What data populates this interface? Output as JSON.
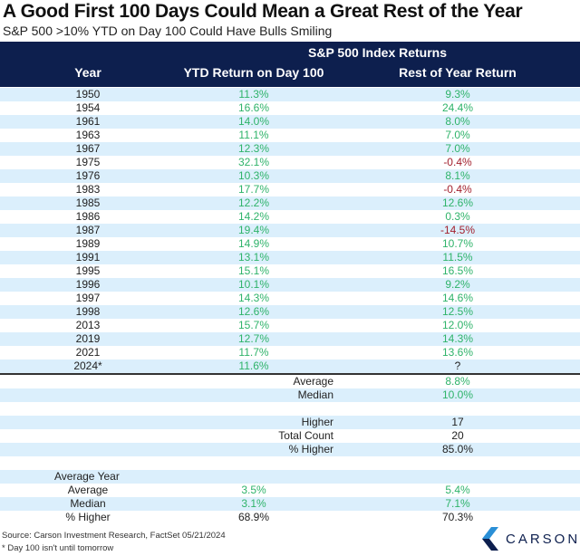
{
  "title": "A Good First 100 Days Could Mean a Great Rest of the Year",
  "subtitle": "S&P 500 >10% YTD on Day 100 Could Have Bulls Smiling",
  "header": {
    "group": "S&P 500 Index Returns",
    "columns": [
      "Year",
      "YTD Return on Day 100",
      "Rest of Year Return"
    ]
  },
  "colors": {
    "header_bg": "#0d1f4e",
    "positive": "#2fb36a",
    "negative": "#a3212e",
    "stripe": "#dbeffc"
  },
  "rows": [
    {
      "year": "1950",
      "ytd": "11.3%",
      "rest": "9.3%"
    },
    {
      "year": "1954",
      "ytd": "16.6%",
      "rest": "24.4%"
    },
    {
      "year": "1961",
      "ytd": "14.0%",
      "rest": "8.0%"
    },
    {
      "year": "1963",
      "ytd": "11.1%",
      "rest": "7.0%"
    },
    {
      "year": "1967",
      "ytd": "12.3%",
      "rest": "7.0%"
    },
    {
      "year": "1975",
      "ytd": "32.1%",
      "rest": "-0.4%"
    },
    {
      "year": "1976",
      "ytd": "10.3%",
      "rest": "8.1%"
    },
    {
      "year": "1983",
      "ytd": "17.7%",
      "rest": "-0.4%"
    },
    {
      "year": "1985",
      "ytd": "12.2%",
      "rest": "12.6%"
    },
    {
      "year": "1986",
      "ytd": "14.2%",
      "rest": "0.3%"
    },
    {
      "year": "1987",
      "ytd": "19.4%",
      "rest": "-14.5%"
    },
    {
      "year": "1989",
      "ytd": "14.9%",
      "rest": "10.7%"
    },
    {
      "year": "1991",
      "ytd": "13.1%",
      "rest": "11.5%"
    },
    {
      "year": "1995",
      "ytd": "15.1%",
      "rest": "16.5%"
    },
    {
      "year": "1996",
      "ytd": "10.1%",
      "rest": "9.2%"
    },
    {
      "year": "1997",
      "ytd": "14.3%",
      "rest": "14.6%"
    },
    {
      "year": "1998",
      "ytd": "12.6%",
      "rest": "12.5%"
    },
    {
      "year": "2013",
      "ytd": "15.7%",
      "rest": "12.0%"
    },
    {
      "year": "2019",
      "ytd": "12.7%",
      "rest": "14.3%"
    },
    {
      "year": "2021",
      "ytd": "11.7%",
      "rest": "13.6%"
    },
    {
      "year": "2024*",
      "ytd": "11.6%",
      "rest": "?"
    }
  ],
  "summary": {
    "average_label": "Average",
    "average": "8.8%",
    "median_label": "Median",
    "median": "10.0%",
    "higher_label": "Higher",
    "higher": "17",
    "total_label": "Total Count",
    "total": "20",
    "pct_higher_label": "% Higher",
    "pct_higher": "85.0%"
  },
  "average_year": {
    "label": "Average Year",
    "average_label": "Average",
    "average_ytd": "3.5%",
    "average_rest": "5.4%",
    "median_label": "Median",
    "median_ytd": "3.1%",
    "median_rest": "7.1%",
    "pct_higher_label": "% Higher",
    "pct_higher_ytd": "68.9%",
    "pct_higher_rest": "70.3%"
  },
  "footer": {
    "source": "Source: Carson Investment Research, FactSet 05/21/2024",
    "note": "* Day 100 isn't until tomorrow",
    "logo_text": "CARSON"
  }
}
